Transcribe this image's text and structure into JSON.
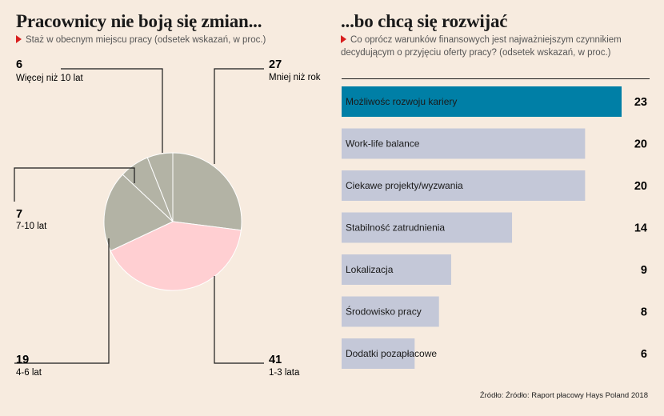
{
  "left": {
    "title": "Pracownicy nie boją się zmian...",
    "subtitle": "Staż w obecnym miejscu pracy (odsetek wskazań, w proc.)"
  },
  "right": {
    "title": "...bo chcą się rozwijać",
    "subtitle_line1": "Co oprócz warunków finansowych jest najważniejszym czynnikiem",
    "subtitle_line2": "decydującym o przyjęciu oferty pracy? (odsetek wskazań, w proc.)"
  },
  "source": "Źródło: Źródło: Raport płacowy Hays Poland 2018",
  "colors": {
    "background": "#f7ebdf",
    "pie_gray": "#b3b3a5",
    "pie_pink": "#ffcfd2",
    "bar_default": "#c4c8d8",
    "bar_highlight": "#007fa6",
    "accent_triangle": "#d81e1e"
  },
  "chart_data": [
    {
      "type": "pie",
      "title": "Pracownicy nie boją się zmian...",
      "subtitle": "Staż w obecnym miejscu pracy (odsetek wskazań, w proc.)",
      "slices": [
        {
          "label": "Mniej niż rok",
          "value": 27,
          "color": "#b3b3a5"
        },
        {
          "label": "1-3 lata",
          "value": 41,
          "color": "#ffcfd2"
        },
        {
          "label": "4-6 lat",
          "value": 19,
          "color": "#b3b3a5"
        },
        {
          "label": "7-10 lat",
          "value": 7,
          "color": "#b3b3a5"
        },
        {
          "label": "Więcej niż 10 lat",
          "value": 6,
          "color": "#b3b3a5"
        }
      ]
    },
    {
      "type": "bar",
      "orientation": "horizontal",
      "title": "...bo chcą się rozwijać",
      "categories": [
        "Możliwośc rozwoju kariery",
        "Work-life balance",
        "Ciekawe projekty/wyzwania",
        "Stabilność zatrudnienia",
        "Lokalizacja",
        "Środowisko pracy",
        "Dodatki pozapłacowe"
      ],
      "values": [
        23,
        20,
        20,
        14,
        9,
        8,
        6
      ],
      "highlight_index": 0,
      "xlim": [
        0,
        23
      ],
      "grid": false
    }
  ]
}
